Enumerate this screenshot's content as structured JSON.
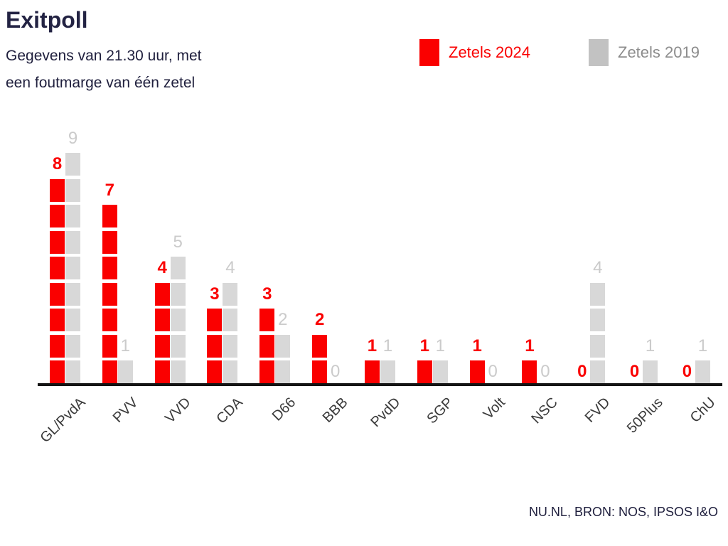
{
  "header": {
    "title": "Exitpoll",
    "subtitle_line1": "Gegevens van 21.30 uur, met",
    "subtitle_line2": "een foutmarge van één zetel"
  },
  "legend": [
    {
      "label": "Zetels 2024",
      "color": "#fa0000"
    },
    {
      "label": "Zetels 2019",
      "color": "#c2c2c2"
    }
  ],
  "chart_data": {
    "type": "bar",
    "title": "Exitpoll",
    "subtitle": "Gegevens van 21.30 uur, met een foutmarge van één zetel",
    "categories": [
      "GL/PvdA",
      "PVV",
      "VVD",
      "CDA",
      "D66",
      "BBB",
      "PvdD",
      "SGP",
      "Volt",
      "NSC",
      "FVD",
      "50Plus",
      "ChU"
    ],
    "series": [
      {
        "name": "Zetels 2024",
        "color": "#fa0000",
        "values": [
          8,
          7,
          4,
          3,
          3,
          2,
          1,
          1,
          1,
          1,
          0,
          0,
          0
        ]
      },
      {
        "name": "Zetels 2019",
        "color": "#d8d8d8",
        "values": [
          9,
          1,
          5,
          4,
          2,
          0,
          1,
          1,
          0,
          0,
          4,
          1,
          1
        ]
      }
    ],
    "xlabel": "",
    "ylabel": "",
    "ylim": [
      0,
      9
    ],
    "grid": false,
    "legend_position": "top-right",
    "bar_style": "unit-block columns, one block per seat, value label above each bar",
    "value_label_colors": {
      "Zetels 2024": "#fa0000",
      "Zetels 2019": "#cbcbcb"
    },
    "axis_color": "#141414"
  },
  "footer": {
    "source": "NU.NL, BRON: NOS, IPSOS I&O"
  }
}
